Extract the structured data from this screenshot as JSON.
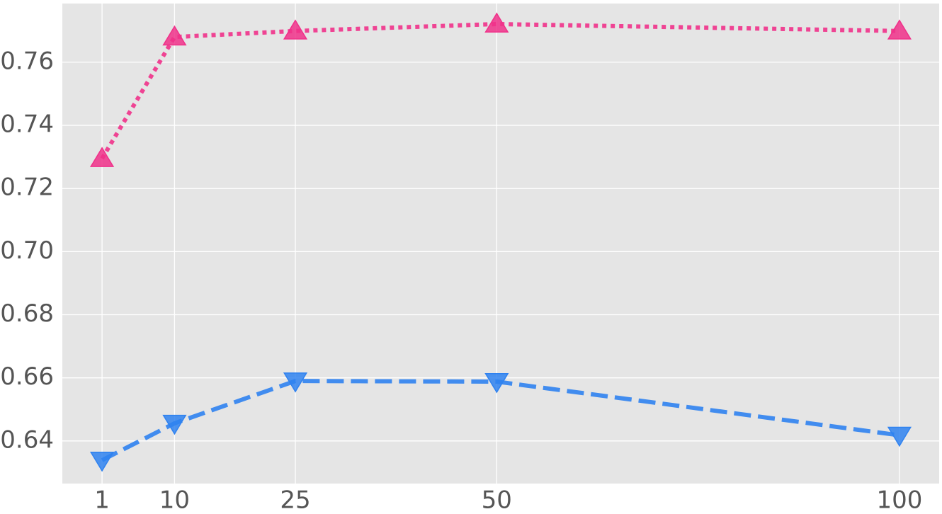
{
  "chart_data": {
    "type": "line",
    "x": [
      1,
      10,
      25,
      50,
      100
    ],
    "series": [
      {
        "color": "#f0318a",
        "marker": "^",
        "linestyle": "dotted",
        "values": [
          0.7295,
          0.768,
          0.7699,
          0.7721,
          0.7699
        ]
      },
      {
        "color": "#2f82f0",
        "marker": "v",
        "linestyle": "dashed",
        "values": [
          0.6339,
          0.6456,
          0.659,
          0.6588,
          0.6418
        ]
      }
    ],
    "xlim": [
      -3.93,
      104.93
    ],
    "ylim": [
      0.6265,
      0.7786
    ],
    "xticks": [
      1,
      10,
      25,
      50,
      100
    ],
    "yticks": [
      0.64,
      0.66,
      0.68,
      {
        "value": 0.7,
        "label": "0.70"
      },
      0.72,
      0.74,
      0.76
    ],
    "grid": true
  }
}
